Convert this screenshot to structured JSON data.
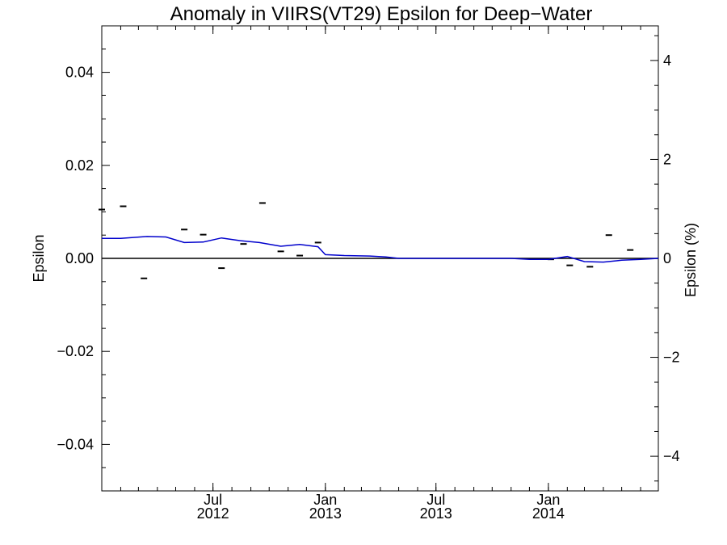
{
  "chart_data": {
    "type": "line",
    "title": "Anomaly in VIIRS(VT29) Epsilon for Deep−Water",
    "ylabel": "Epsilon",
    "ylabel_right": "Epsilon (%)",
    "xlim": [
      "2012-01-01",
      "2014-06-30"
    ],
    "ylim": [
      -0.05,
      0.05
    ],
    "ylim_right": [
      -4.7,
      4.7
    ],
    "y_ticks": [
      0.04,
      0.02,
      0.0,
      -0.02,
      -0.04
    ],
    "y_tick_labels": [
      "0.04",
      "0.02",
      "0.00",
      "−0.02",
      "−0.04"
    ],
    "y_ticks_right": [
      4,
      2,
      0,
      -2,
      -4
    ],
    "y_tick_labels_right": [
      "4",
      "2",
      "0",
      "−2",
      "−4"
    ],
    "x_ticks": [
      {
        "date": "2012-07-01",
        "line1": "Jul",
        "line2": "2012"
      },
      {
        "date": "2013-01-01",
        "line1": "Jan",
        "line2": "2013"
      },
      {
        "date": "2013-07-01",
        "line1": "Jul",
        "line2": "2013"
      },
      {
        "date": "2014-01-01",
        "line1": "Jan",
        "line2": "2014"
      }
    ],
    "series": [
      {
        "kind": "points",
        "color": "#000000",
        "x": [
          "2012-01-01",
          "2012-02-05",
          "2012-03-10",
          "2012-05-15",
          "2012-06-15",
          "2012-07-15",
          "2012-08-20",
          "2012-09-20",
          "2012-10-20",
          "2012-11-20",
          "2012-12-20",
          "2014-01-05",
          "2014-02-05",
          "2014-03-10",
          "2014-04-10",
          "2014-05-15"
        ],
        "y": [
          0.0105,
          0.0112,
          -0.0043,
          0.0062,
          0.0051,
          -0.0021,
          0.0031,
          0.0119,
          0.0015,
          0.0006,
          0.0034,
          -0.0002,
          -0.0015,
          -0.0018,
          0.005,
          0.0018
        ]
      },
      {
        "kind": "line",
        "color": "#0000cc",
        "x": [
          "2012-01-01",
          "2012-02-01",
          "2012-03-15",
          "2012-04-15",
          "2012-05-15",
          "2012-06-15",
          "2012-07-15",
          "2012-08-15",
          "2012-09-15",
          "2012-10-20",
          "2012-11-20",
          "2012-12-20",
          "2013-01-01",
          "2013-02-01",
          "2013-03-15",
          "2013-04-10",
          "2013-05-01",
          "2013-06-01",
          "2013-07-01",
          "2013-08-01",
          "2013-09-01",
          "2013-10-01",
          "2013-11-01",
          "2013-12-01",
          "2014-01-01",
          "2014-02-01",
          "2014-03-01",
          "2014-04-01",
          "2014-05-01",
          "2014-06-01",
          "2014-06-30"
        ],
        "y": [
          0.0043,
          0.0043,
          0.0047,
          0.0046,
          0.0034,
          0.0035,
          0.0044,
          0.0038,
          0.0034,
          0.0026,
          0.003,
          0.0025,
          0.0008,
          0.0006,
          0.0005,
          0.0003,
          0.0,
          0.0,
          0.0,
          0.0,
          0.0,
          0.0,
          0.0,
          -0.0002,
          -0.0002,
          0.0004,
          -0.0007,
          -0.0008,
          -0.0004,
          -0.0002,
          0.0
        ]
      }
    ],
    "zero_line": true,
    "grid": false,
    "legend": "none"
  }
}
